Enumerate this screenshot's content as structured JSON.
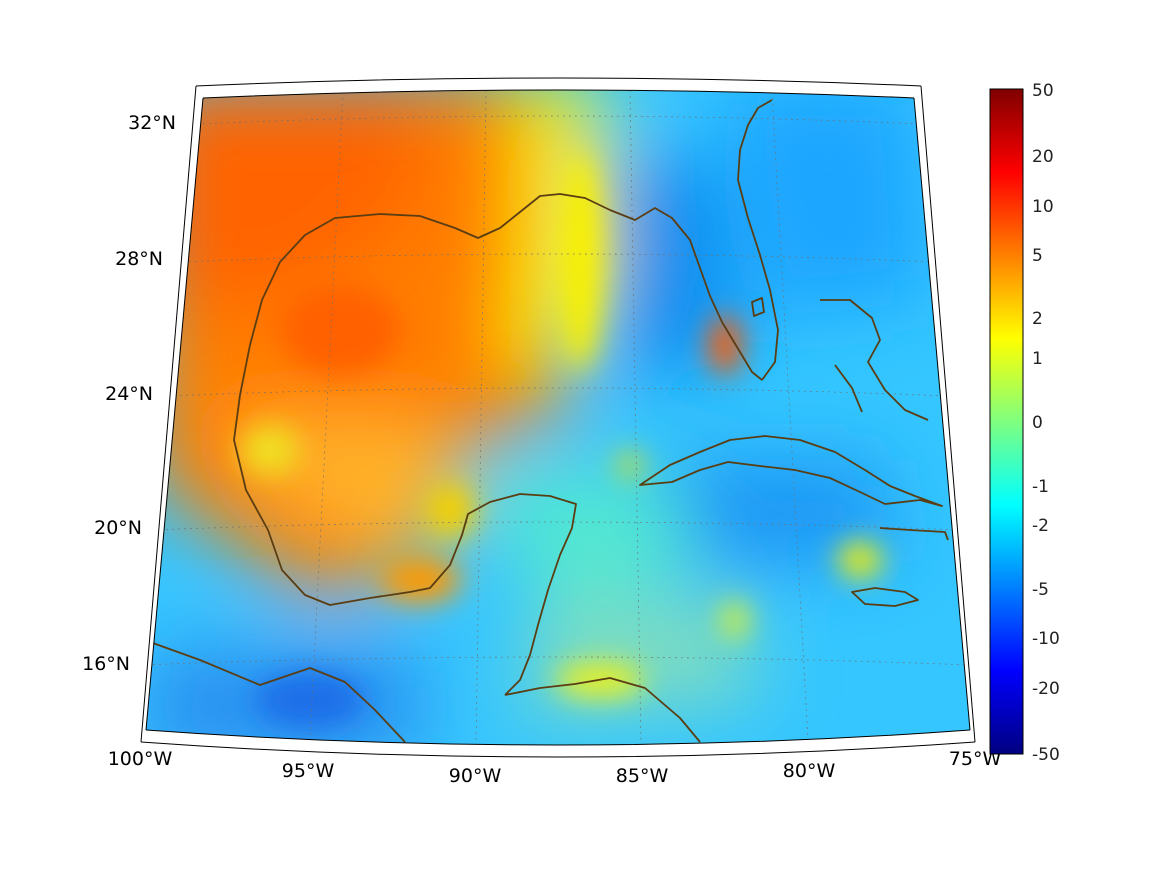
{
  "map": {
    "projection": "conic",
    "extent": {
      "lon_min": -100,
      "lon_max": -75,
      "lat_min": 14,
      "lat_max": 33
    },
    "coastline_color": "#5a3d12",
    "gridlines": true
  },
  "lat_labels": [
    "32°N",
    "28°N",
    "24°N",
    "20°N",
    "16°N"
  ],
  "lon_labels": [
    "100°W",
    "95°W",
    "90°W",
    "85°W",
    "80°W",
    "75°W"
  ],
  "colorbar": {
    "colormap": "jet",
    "labels": [
      "50",
      "20",
      "10",
      "5",
      "2",
      "1",
      "0",
      "-1",
      "-2",
      "-5",
      "-10",
      "-20",
      "-50"
    ]
  }
}
